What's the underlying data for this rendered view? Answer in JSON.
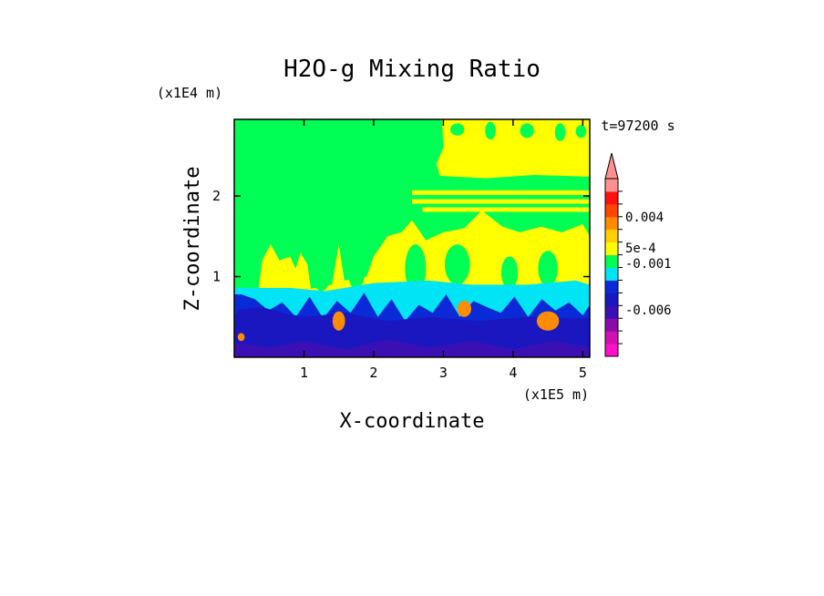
{
  "chart_data": {
    "type": "heatmap",
    "title": "H2O-g Mixing Ratio",
    "xlabel": "X-coordinate",
    "ylabel": "Z-coordinate",
    "x_unit": "(x1E5 m)",
    "y_unit": "(x1E4 m)",
    "time_label": "t=97200 s",
    "xlim": [
      0,
      5.1
    ],
    "ylim": [
      0,
      2.95
    ],
    "x_ticks": [
      "1",
      "2",
      "3",
      "4",
      "5"
    ],
    "y_ticks": [
      "1",
      "2"
    ],
    "colorbar": {
      "levels": [
        {
          "color": "#ff11c8"
        },
        {
          "color": "#d20fb0"
        },
        {
          "color": "#8a0ca8"
        },
        {
          "color": "#3a10b5"
        },
        {
          "color": "#1a17c0"
        },
        {
          "color": "#0a2ad8"
        },
        {
          "color": "#00e4f5"
        },
        {
          "color": "#00ff55"
        },
        {
          "color": "#ffff00"
        },
        {
          "color": "#ffd000"
        },
        {
          "color": "#ff8c00"
        },
        {
          "color": "#ff4500"
        },
        {
          "color": "#ff1010"
        },
        {
          "color": "#ff9090"
        }
      ],
      "tick_labels": [
        "-0.006",
        "-0.001",
        "5e-4",
        "0.004"
      ],
      "extend": "max"
    },
    "field_regions": [
      {
        "name": "background",
        "color": "#00ff55"
      },
      {
        "name": "upper-right-band",
        "color": "#ffff00"
      },
      {
        "name": "mid-plumes",
        "color": "#ffff00"
      },
      {
        "name": "cyan-layer",
        "color": "#00e4f5"
      },
      {
        "name": "blue-boundary-layer",
        "color": "#1a17c0"
      },
      {
        "name": "orange-blobs",
        "color": "#ff8c00"
      }
    ]
  }
}
